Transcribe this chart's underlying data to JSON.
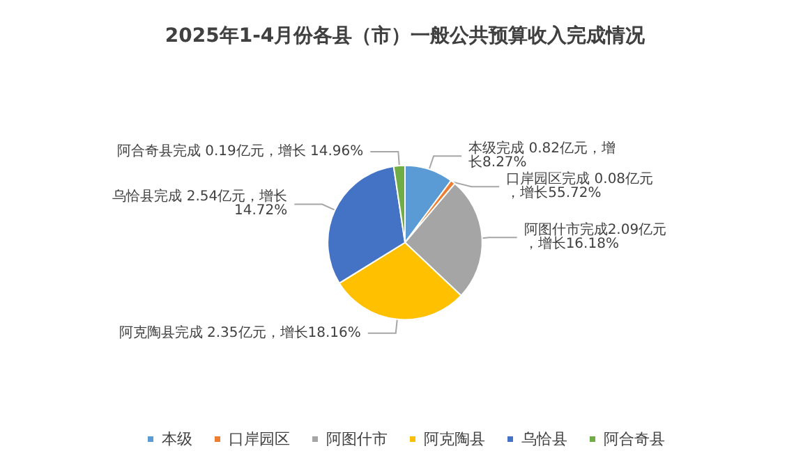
{
  "chart_data": {
    "type": "pie",
    "title": "2025年1-4月份各县（市）一般公共预算收入完成情况",
    "categories": [
      "本级",
      "口岸园区",
      "阿图什市",
      "阿克陶县",
      "乌恰县",
      "阿合奇县"
    ],
    "values": [
      0.82,
      0.08,
      2.09,
      2.35,
      2.54,
      0.19
    ],
    "colors": [
      "#5b9bd5",
      "#ed7d31",
      "#a5a5a5",
      "#ffc000",
      "#4472c4",
      "#70ad47"
    ],
    "value_labels": [
      "本级完成 0.82亿元，增长8.27%",
      "口岸园区完成 0.08亿元，增长55.72%",
      "阿图什市完成2.09亿元，增长16.18%",
      "阿克陶县完成 2.35亿元，增长18.16%",
      "乌恰县完成 2.54亿元，增长14.72%",
      "阿合奇县完成 0.19亿元，增长 14.96%"
    ],
    "legend": "bottom"
  }
}
